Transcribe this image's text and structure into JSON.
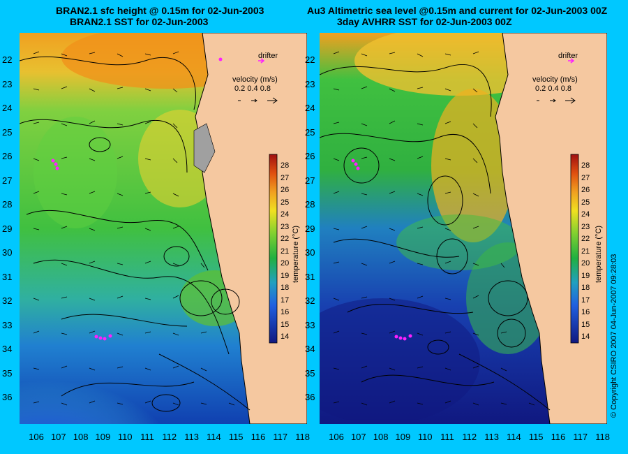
{
  "left": {
    "title_line1": "BRAN2.1 sfc height @ 0.15m for 02-Jun-2003",
    "title_line2": "BRAN2.1 SST for 02-Jun-2003"
  },
  "right": {
    "title_line1": "Au3 Altimetric sea level  @0.15m and current for 02-Jun-2003 00Z",
    "title_line2": "3day AVHRR SST for 02-Jun-2003 00Z"
  },
  "legend": {
    "drifter_label": "drifter",
    "velocity_label": "velocity (m/s)",
    "velocity_values": "0.2 0.4 0.8",
    "colorbar_label": "temperature (°C)",
    "colorbar_ticks": [
      "28",
      "27",
      "26",
      "25",
      "24",
      "23",
      "22",
      "21",
      "20",
      "19",
      "18",
      "17",
      "16",
      "15",
      "14"
    ]
  },
  "axes": {
    "lat_ticks": [
      "22",
      "23",
      "24",
      "25",
      "26",
      "27",
      "28",
      "29",
      "30",
      "31",
      "32",
      "33",
      "34",
      "35",
      "36"
    ],
    "lon_ticks": [
      "106",
      "107",
      "108",
      "109",
      "110",
      "111",
      "112",
      "113",
      "114",
      "115",
      "116",
      "117",
      "118"
    ]
  },
  "copyright": "© Copyright CSIRO 2007     04-Jun-2007 09:28:03",
  "colors": {
    "background": "#00c8ff",
    "land": "#f5c8a0",
    "drifter": "#ff20ff"
  }
}
